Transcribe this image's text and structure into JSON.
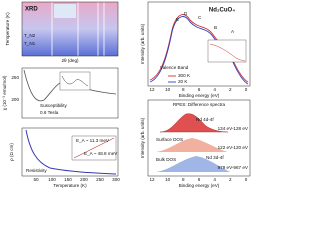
{
  "xrd": {
    "label": "XRD",
    "y_label": "Temperature (K)",
    "x_label": "2θ (deg)",
    "tn2": "T_N2",
    "tn1": "T_N1"
  },
  "susceptibility": {
    "label": "Susceptibility",
    "field": "0.6 Tesla",
    "y_label": "χ (10⁻³ emu/mol)",
    "y_ticks": [
      250,
      200
    ]
  },
  "resistivity": {
    "label": "Resistivity",
    "y_label": "ρ (Ω cm)",
    "x_label": "Temperature (K)",
    "x_ticks": [
      50,
      100,
      150,
      200,
      250,
      300
    ],
    "ea1": "E_A ~ 11.3 meV",
    "ea2": "E_A ~ 48.8 meV"
  },
  "valence": {
    "title": "Nd₂CuO₄",
    "label": "Valence Band",
    "y_label": "Intensity (arb. units)",
    "x_label": "Binding energy (eV)",
    "legend": [
      "300 K",
      "20 K"
    ],
    "x_ticks": [
      12,
      10,
      8,
      6,
      4,
      2,
      0
    ],
    "markers": [
      "A",
      "B",
      "C",
      "D",
      "E"
    ]
  },
  "rpes": {
    "title": "RPES: Difference spectra",
    "y_label": "Intensity (arb. units)",
    "x_label": "Binding energy (eV)",
    "labels": [
      "Nd 4d-4f",
      "Surface DOS",
      "Bulk DOS",
      "Nd 3d-4f"
    ],
    "energies": [
      "134 eV-128 eV",
      "122 eV-120 eV",
      "979 eV-967 eV"
    ],
    "x_ticks": [
      12,
      10,
      8,
      6,
      4,
      2,
      0
    ]
  }
}
